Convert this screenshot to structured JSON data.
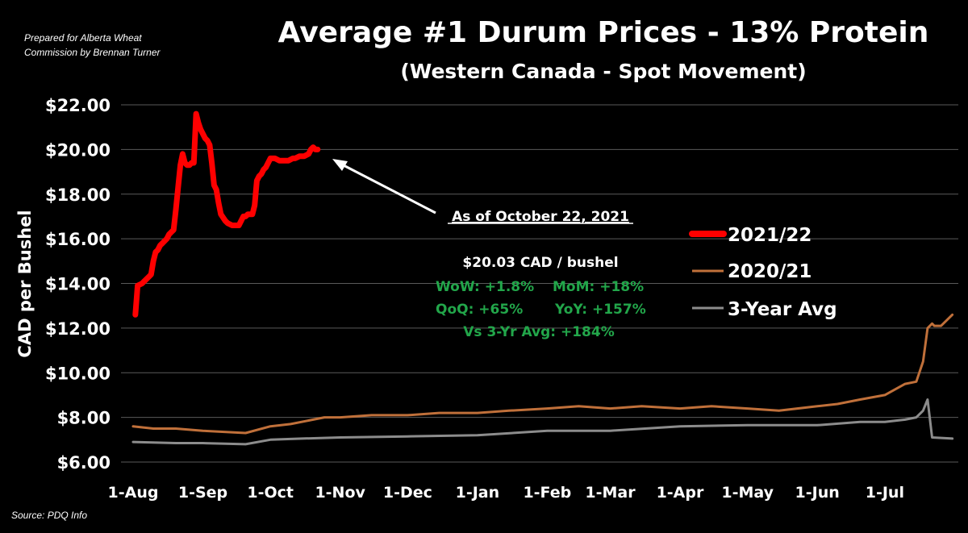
{
  "credit": [
    "Prepared for Alberta Wheat",
    "Commission by Brennan Turner"
  ],
  "source": "Source: PDQ Info",
  "chart_data": {
    "type": "line",
    "title": "Average #1 Durum Prices - 13% Protein",
    "subtitle": "(Western Canada - Spot Movement)",
    "ylabel": "CAD per Bushel",
    "ylim": [
      6,
      22
    ],
    "yticks": [
      "$6.00",
      "$8.00",
      "$10.00",
      "$12.00",
      "$14.00",
      "$16.00",
      "$18.00",
      "$20.00",
      "$22.00"
    ],
    "xticks": [
      "1-Aug",
      "1-Sep",
      "1-Oct",
      "1-Nov",
      "1-Dec",
      "1-Jan",
      "1-Feb",
      "1-Mar",
      "1-Apr",
      "1-May",
      "1-Jun",
      "1-Jul"
    ],
    "grid": true,
    "legend_position": "right",
    "series": [
      {
        "name": "2021/22",
        "color": "#ff0000",
        "x": [
          "2021-08-02",
          "2021-08-03",
          "2021-08-05",
          "2021-08-06",
          "2021-08-08",
          "2021-08-09",
          "2021-08-10",
          "2021-08-11",
          "2021-08-12",
          "2021-08-13",
          "2021-08-14",
          "2021-08-16",
          "2021-08-17",
          "2021-08-18",
          "2021-08-19",
          "2021-08-20",
          "2021-08-21",
          "2021-08-22",
          "2021-08-23",
          "2021-08-24",
          "2021-08-25",
          "2021-08-26",
          "2021-08-27",
          "2021-08-28",
          "2021-08-29",
          "2021-08-30",
          "2021-08-31",
          "2021-09-01",
          "2021-09-02",
          "2021-09-03",
          "2021-09-04",
          "2021-09-05",
          "2021-09-06",
          "2021-09-07",
          "2021-09-08",
          "2021-09-09",
          "2021-09-11",
          "2021-09-12",
          "2021-09-14",
          "2021-09-17",
          "2021-09-19",
          "2021-09-20",
          "2021-09-21",
          "2021-09-23",
          "2021-09-24",
          "2021-09-25",
          "2021-09-26",
          "2021-09-27",
          "2021-09-28",
          "2021-09-29",
          "2021-10-01",
          "2021-10-03",
          "2021-10-05",
          "2021-10-07",
          "2021-10-08",
          "2021-10-09",
          "2021-10-11",
          "2021-10-12",
          "2021-10-14",
          "2021-10-16",
          "2021-10-18",
          "2021-10-19",
          "2021-10-20",
          "2021-10-21",
          "2021-10-22"
        ],
        "values": [
          12.6,
          13.9,
          14.0,
          14.1,
          14.3,
          14.4,
          15.0,
          15.4,
          15.5,
          15.7,
          15.8,
          16.0,
          16.2,
          16.3,
          16.4,
          17.3,
          18.3,
          19.3,
          19.8,
          19.4,
          19.3,
          19.3,
          19.4,
          19.4,
          21.6,
          21.2,
          20.9,
          20.7,
          20.5,
          20.4,
          20.2,
          19.4,
          18.4,
          18.2,
          17.6,
          17.1,
          16.8,
          16.7,
          16.6,
          16.6,
          17.0,
          17.0,
          17.1,
          17.1,
          17.5,
          18.6,
          18.8,
          18.9,
          19.1,
          19.2,
          19.6,
          19.6,
          19.5,
          19.5,
          19.5,
          19.5,
          19.6,
          19.6,
          19.7,
          19.7,
          19.8,
          20.0,
          20.1,
          20.0,
          20.0
        ]
      },
      {
        "name": "2020/21",
        "color": "#c0703a",
        "x": [
          "2020-08-01",
          "2020-08-10",
          "2020-08-20",
          "2020-09-01",
          "2020-09-20",
          "2020-10-01",
          "2020-10-10",
          "2020-10-20",
          "2020-10-25",
          "2020-11-01",
          "2020-11-15",
          "2020-12-01",
          "2020-12-15",
          "2021-01-01",
          "2021-01-15",
          "2021-02-01",
          "2021-02-15",
          "2021-03-01",
          "2021-03-15",
          "2021-04-01",
          "2021-04-15",
          "2021-05-01",
          "2021-05-15",
          "2021-06-01",
          "2021-06-10",
          "2021-06-20",
          "2021-07-01",
          "2021-07-10",
          "2021-07-15",
          "2021-07-18",
          "2021-07-20",
          "2021-07-22",
          "2021-07-23",
          "2021-07-26",
          "2021-07-31"
        ],
        "values": [
          7.6,
          7.5,
          7.5,
          7.4,
          7.3,
          7.6,
          7.7,
          7.9,
          8.0,
          8.0,
          8.1,
          8.1,
          8.2,
          8.2,
          8.3,
          8.4,
          8.5,
          8.4,
          8.5,
          8.4,
          8.5,
          8.4,
          8.3,
          8.5,
          8.6,
          8.8,
          9.0,
          9.5,
          9.6,
          10.5,
          12.0,
          12.2,
          12.1,
          12.1,
          12.6
        ]
      },
      {
        "name": "3-Year Avg",
        "color": "#8c8c8c",
        "x": [
          "2020-08-01",
          "2020-08-20",
          "2020-09-01",
          "2020-09-20",
          "2020-10-01",
          "2020-10-15",
          "2020-11-01",
          "2020-12-01",
          "2021-01-01",
          "2021-02-01",
          "2021-03-01",
          "2021-04-01",
          "2021-05-01",
          "2021-06-01",
          "2021-06-20",
          "2021-07-01",
          "2021-07-10",
          "2021-07-15",
          "2021-07-18",
          "2021-07-20",
          "2021-07-22",
          "2021-07-31"
        ],
        "values": [
          6.9,
          6.85,
          6.85,
          6.8,
          7.0,
          7.05,
          7.1,
          7.15,
          7.2,
          7.4,
          7.4,
          7.6,
          7.65,
          7.65,
          7.8,
          7.8,
          7.9,
          8.0,
          8.3,
          8.8,
          7.1,
          7.05
        ]
      }
    ],
    "annotation": {
      "date_label": "As of October 22, 2021",
      "price": "$20.03 CAD / bushel",
      "wow": "WoW: +1.8%",
      "mom": "MoM: +18%",
      "qoq": "QoQ: +65%",
      "yoy": "YoY: +157%",
      "vs3yr": "Vs 3-Yr Avg: +184%",
      "stats_color": "#22a64a"
    }
  }
}
